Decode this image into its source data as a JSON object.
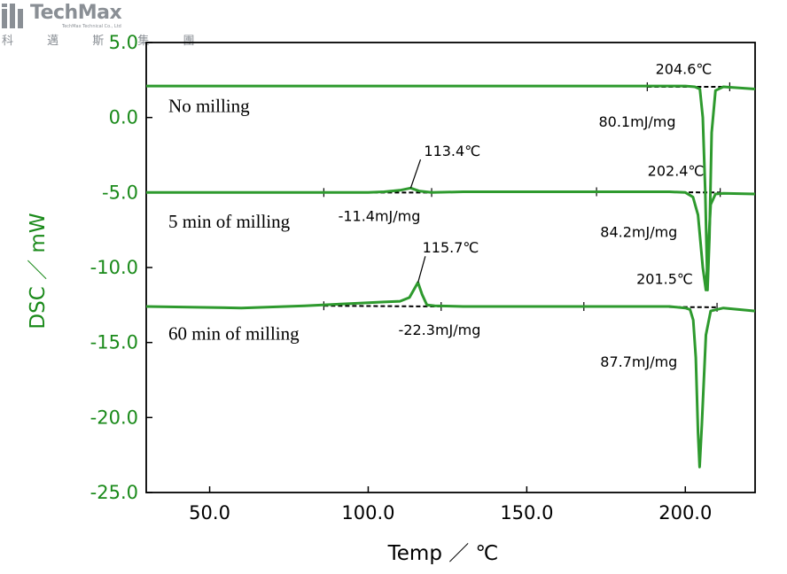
{
  "logo": {
    "brand": "TechMax",
    "tagline": "TechMax Technical Co., Ltd",
    "chinese": "科 邁 斯 集 團"
  },
  "chart_data": {
    "type": "line",
    "xlabel": "Temp ／ ℃",
    "ylabel": "DSC ／ mW",
    "xlim": [
      30,
      222
    ],
    "ylim": [
      -25,
      5
    ],
    "xticks": [
      50.0,
      100.0,
      150.0,
      200.0
    ],
    "xtick_labels": [
      "50.0",
      "100.0",
      "150.0",
      "200.0"
    ],
    "yticks": [
      5.0,
      0.0,
      -5.0,
      -10.0,
      -15.0,
      -20.0,
      -25.0
    ],
    "ytick_labels": [
      "5.0",
      "0.0",
      "-5.0",
      "-10.0",
      "-15.0",
      "-20.0",
      "-25.0"
    ],
    "grid": false,
    "colors": {
      "curve": "#2e9a2e",
      "axis_text_y": "#1a8a1a",
      "baseline": "#000000"
    },
    "series": [
      {
        "name": "No milling",
        "x": [
          30,
          100,
          180,
          200,
          203,
          204.6,
          205.5,
          206.3,
          207,
          207.6,
          208.3,
          209.5,
          212,
          222
        ],
        "y": [
          2.1,
          2.1,
          2.1,
          2.1,
          2.05,
          1.9,
          0,
          -5,
          -11.5,
          -8,
          -1,
          1.8,
          2.05,
          1.9
        ],
        "peak_label": "204.6℃",
        "enthalpy_label": "80.1mJ/mg"
      },
      {
        "name": "5 min of milling",
        "x": [
          30,
          60,
          90,
          100,
          105,
          110,
          113.4,
          116,
          120,
          130,
          170,
          195,
          200,
          202.4,
          204,
          205.5,
          206.5,
          207.3,
          208,
          209.5,
          212,
          222
        ],
        "y": [
          -5.0,
          -5.0,
          -5.0,
          -5.0,
          -4.95,
          -4.85,
          -4.7,
          -4.9,
          -5.0,
          -4.95,
          -4.95,
          -4.95,
          -5.0,
          -5.3,
          -6.5,
          -10,
          -11.5,
          -8.5,
          -5.8,
          -5.1,
          -5.05,
          -5.1
        ],
        "peak_label": "113.4℃",
        "enthalpy_label": "-11.4mJ/mg",
        "peak2_label": "202.4℃",
        "enthalpy2_label": "84.2mJ/mg"
      },
      {
        "name": "60 min of milling",
        "x": [
          30,
          60,
          80,
          95,
          105,
          110,
          113,
          115.7,
          117,
          118.5,
          121,
          130,
          170,
          195,
          200,
          201.5,
          202.5,
          203.3,
          204,
          204.5,
          205.2,
          206.5,
          208,
          212,
          222
        ],
        "y": [
          -12.6,
          -12.7,
          -12.55,
          -12.4,
          -12.3,
          -12.25,
          -12.0,
          -11.0,
          -11.8,
          -12.5,
          -12.55,
          -12.6,
          -12.6,
          -12.6,
          -12.7,
          -12.8,
          -13.5,
          -16.0,
          -21.0,
          -23.3,
          -20.5,
          -14.5,
          -12.9,
          -12.7,
          -12.9
        ],
        "peak_label": "115.7℃",
        "enthalpy_label": "-22.3mJ/mg",
        "peak2_label": "201.5℃",
        "enthalpy2_label": "87.7mJ/mg"
      }
    ],
    "baselines": [
      {
        "series": 0,
        "x": [
          188,
          214
        ],
        "y": [
          2.05,
          2.05
        ]
      },
      {
        "series": 1,
        "x": [
          86,
          120
        ],
        "y": [
          -5.0,
          -5.0
        ]
      },
      {
        "series": 1,
        "x": [
          172,
          211
        ],
        "y": [
          -4.95,
          -5.0
        ]
      },
      {
        "series": 2,
        "x": [
          86,
          123
        ],
        "y": [
          -12.55,
          -12.6
        ]
      },
      {
        "series": 2,
        "x": [
          168,
          210
        ],
        "y": [
          -12.6,
          -12.65
        ]
      }
    ],
    "annotations": [
      {
        "text_path": "series.0.name",
        "x": 37,
        "y": 0.35,
        "cls": "curve-label",
        "anchor": "start"
      },
      {
        "text_path": "series.1.name",
        "x": 37,
        "y": -7.35,
        "cls": "curve-label",
        "anchor": "start"
      },
      {
        "text_path": "series.2.name",
        "x": 37,
        "y": -14.8,
        "cls": "curve-label",
        "anchor": "start"
      },
      {
        "text_path": "series.0.peak_label",
        "x": 199.5,
        "y": 2.9,
        "cls": "ann",
        "anchor": "middle"
      },
      {
        "text_path": "series.0.enthalpy_label",
        "x": 197,
        "y": -0.6,
        "cls": "ann",
        "anchor": "end"
      },
      {
        "text_path": "series.1.peak_label",
        "x": 126.5,
        "y": -2.55,
        "cls": "ann",
        "anchor": "middle"
      },
      {
        "text_path": "series.1.enthalpy_label",
        "x": 103.5,
        "y": -6.9,
        "cls": "ann",
        "anchor": "middle"
      },
      {
        "text_path": "series.1.peak2_label",
        "x": 197,
        "y": -3.9,
        "cls": "ann",
        "anchor": "middle"
      },
      {
        "text_path": "series.1.enthalpy2_label",
        "x": 197.5,
        "y": -7.95,
        "cls": "ann",
        "anchor": "end"
      },
      {
        "text_path": "series.2.peak_label",
        "x": 126,
        "y": -9.0,
        "cls": "ann",
        "anchor": "middle"
      },
      {
        "text_path": "series.2.enthalpy_label",
        "x": 122.5,
        "y": -14.5,
        "cls": "ann",
        "anchor": "middle"
      },
      {
        "text_path": "series.2.peak2_label",
        "x": 193.5,
        "y": -11.1,
        "cls": "ann",
        "anchor": "middle"
      },
      {
        "text_path": "series.2.enthalpy2_label",
        "x": 197.5,
        "y": -16.6,
        "cls": "ann",
        "anchor": "end"
      }
    ],
    "leaders": [
      {
        "x": [
          116.5,
          113.4
        ],
        "y": [
          -2.8,
          -4.7
        ]
      },
      {
        "x": [
          118,
          115.7
        ],
        "y": [
          -9.25,
          -11.0
        ]
      }
    ]
  }
}
